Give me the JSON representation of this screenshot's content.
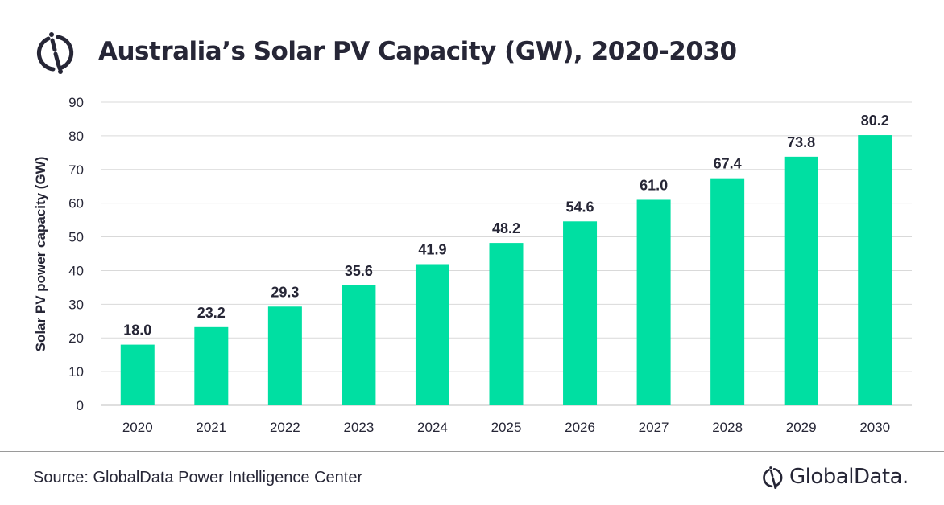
{
  "chart_data": {
    "type": "bar",
    "title": "Australia’s Solar PV Capacity (GW), 2020-2030",
    "ylabel": "Solar PV power capacity (GW)",
    "xlabel": "",
    "categories": [
      "2020",
      "2021",
      "2022",
      "2023",
      "2024",
      "2025",
      "2026",
      "2027",
      "2028",
      "2029",
      "2030"
    ],
    "values": [
      18.0,
      23.2,
      29.3,
      35.6,
      41.9,
      48.2,
      54.6,
      61.0,
      67.4,
      73.8,
      80.2
    ],
    "data_labels": [
      "18.0",
      "23.2",
      "29.3",
      "35.6",
      "41.9",
      "48.2",
      "54.6",
      "61.0",
      "67.4",
      "73.8",
      "80.2"
    ],
    "ylim": [
      0,
      90
    ],
    "yticks": [
      0,
      10,
      20,
      30,
      40,
      50,
      60,
      70,
      80,
      90
    ],
    "grid": true,
    "bar_color": "#00DFA2"
  },
  "footer": {
    "source": "Source: GlobalData Power Intelligence Center",
    "brand": "GlobalData."
  },
  "colors": {
    "text": "#262636",
    "grid": "#d9d9d9"
  }
}
